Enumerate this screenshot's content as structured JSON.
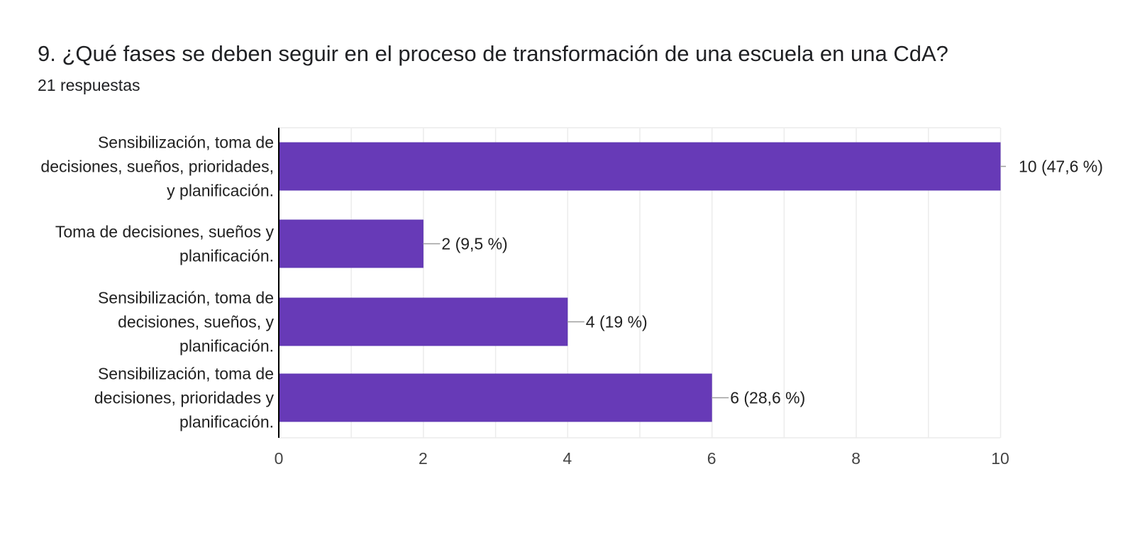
{
  "question": {
    "title": "9. ¿Qué fases se deben seguir en el proceso de transformación de una escuela en una CdA?",
    "responses": "21 respuestas"
  },
  "colors": {
    "bar": "#673ab7",
    "bar_border": "#5e35b1",
    "grid": "#ececec",
    "axis": "#000000",
    "leader": "#9e9e9e",
    "text": "#212121",
    "tick_text": "#444444"
  },
  "chart_data": {
    "type": "bar",
    "orientation": "horizontal",
    "categories": [
      [
        "Sensibilización, toma de",
        "decisiones, sueños, prioridades,",
        "y planificación."
      ],
      [
        "Toma de decisiones, sueños y",
        "planificación."
      ],
      [
        "Sensibilización, toma de",
        "decisiones, sueños, y",
        "planificación."
      ],
      [
        "Sensibilización, toma de",
        "decisiones, prioridades y",
        "planificación."
      ]
    ],
    "values": [
      10,
      2,
      4,
      6
    ],
    "value_labels": [
      "10 (47,6 %)",
      "2 (9,5 %)",
      "4 (19 %)",
      "6 (28,6 %)"
    ],
    "xlim": [
      0,
      10
    ],
    "xticks": [
      "0",
      "2",
      "4",
      "6",
      "8",
      "10"
    ],
    "grid": true,
    "legend": "none",
    "title": "9. ¿Qué fases se deben seguir en el proceso de transformación de una escuela en una CdA?",
    "xlabel": "",
    "ylabel": ""
  }
}
